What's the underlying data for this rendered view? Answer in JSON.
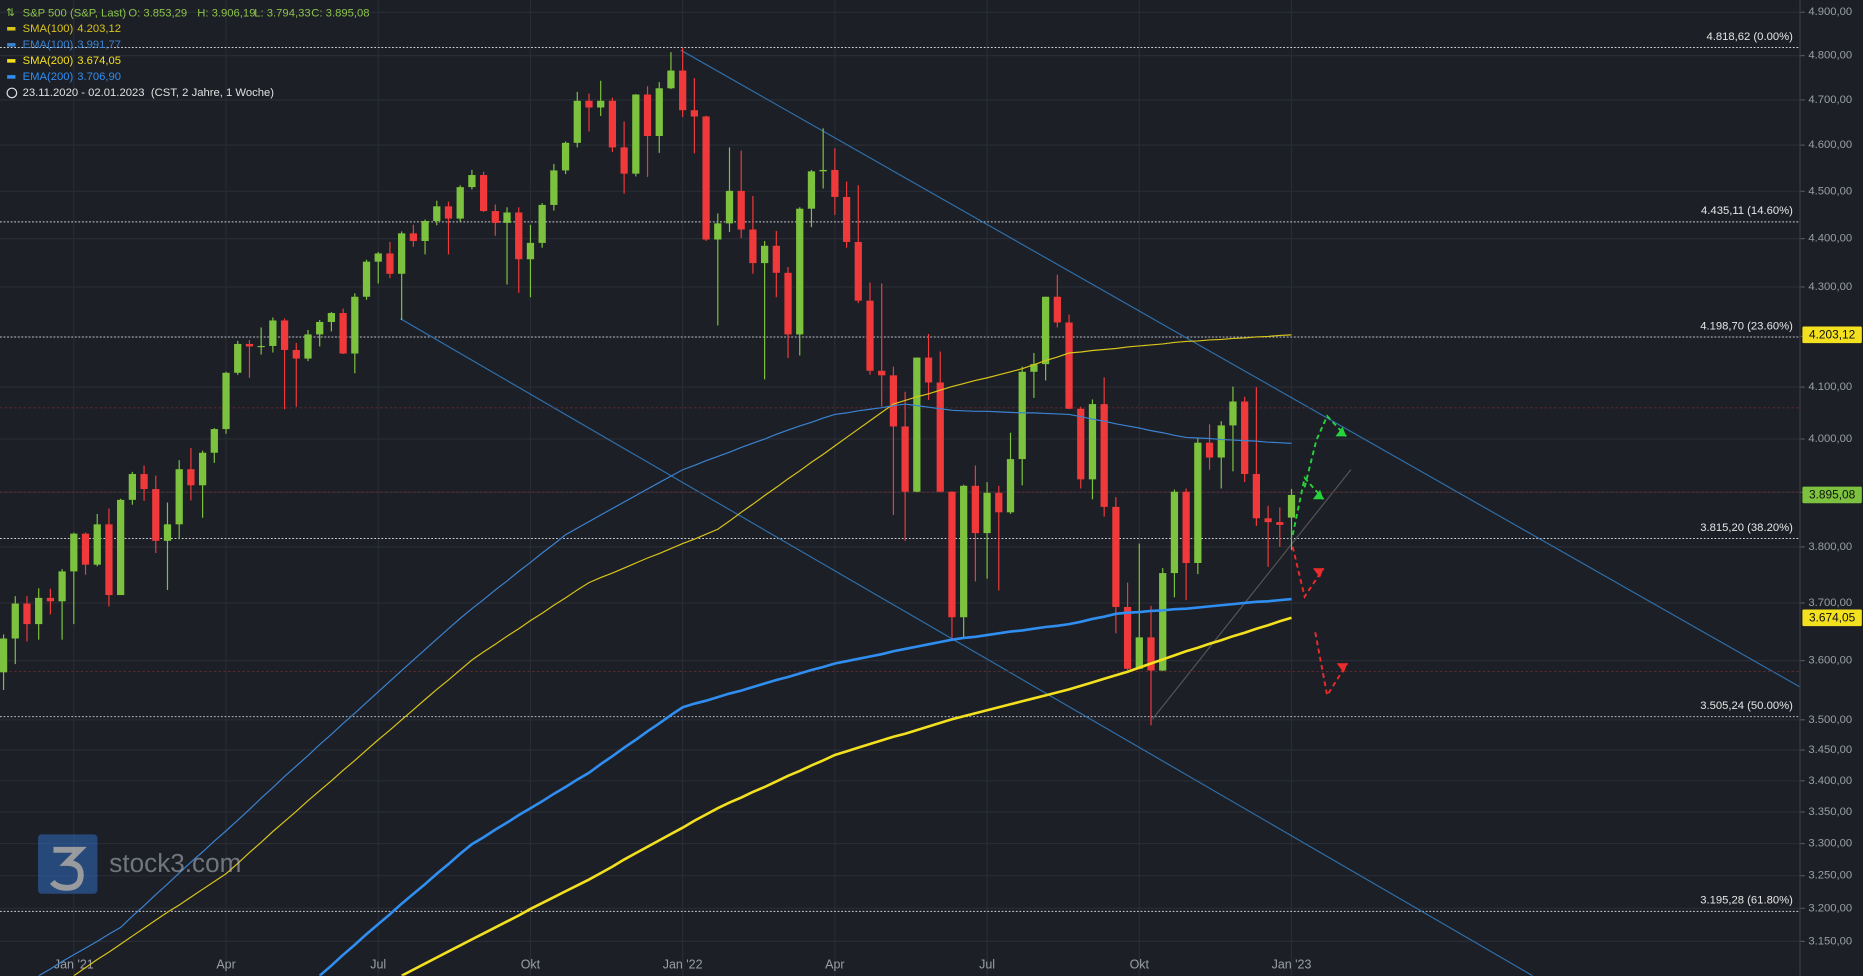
{
  "chart_data": {
    "type": "candlestick",
    "instrument": "S&P 500 (S&P, Last)",
    "ohlc_labels": [
      "O: 3.853,29",
      "H: 3.906,19",
      "L: 3.794,33",
      "C: 3.895,08"
    ],
    "date_range": "23.11.2020 - 02.01.2023",
    "period_info": "(CST, 2 Jahre, 1 Woche)",
    "watermark": "stock3.com",
    "log_scale": true,
    "grid": true,
    "up_color": "#7cc23e",
    "down_color": "#f0393a",
    "categories": [
      null,
      null,
      null,
      null,
      null,
      null,
      "Jan '21",
      null,
      null,
      null,
      null,
      null,
      null,
      null,
      null,
      null,
      null,
      null,
      null,
      "Apr",
      null,
      null,
      null,
      null,
      null,
      null,
      null,
      null,
      null,
      null,
      null,
      null,
      "Jul",
      null,
      null,
      null,
      null,
      null,
      null,
      null,
      null,
      null,
      null,
      null,
      null,
      "Okt",
      null,
      null,
      null,
      null,
      null,
      null,
      null,
      null,
      null,
      null,
      null,
      null,
      "Jan '22",
      null,
      null,
      null,
      null,
      null,
      null,
      null,
      null,
      null,
      null,
      null,
      null,
      "Apr",
      null,
      null,
      null,
      null,
      null,
      null,
      null,
      null,
      null,
      null,
      null,
      null,
      "Jul",
      null,
      null,
      null,
      null,
      null,
      null,
      null,
      null,
      null,
      null,
      null,
      null,
      "Okt",
      null,
      null,
      null,
      null,
      null,
      null,
      null,
      null,
      null,
      null,
      null,
      null,
      "Jan '23"
    ],
    "open": [
      3580,
      3638,
      3699,
      3663,
      3709,
      3703,
      3756,
      3824,
      3768,
      3841,
      3714,
      3886,
      3934,
      3906,
      3811,
      3841,
      3943,
      3913,
      3974,
      4019,
      4128,
      4185,
      4180,
      4181,
      4232,
      4173,
      4156,
      4204,
      4229,
      4247,
      4166,
      4280,
      4352,
      4369,
      4327,
      4411,
      4395,
      4437,
      4468,
      4442,
      4509,
      4535,
      4458,
      4433,
      4455,
      4357,
      4391,
      4471,
      4545,
      4605,
      4698,
      4683,
      4698,
      4595,
      4538,
      4712,
      4620,
      4726,
      4766,
      4677,
      4663,
      4398,
      4432,
      4501,
      4419,
      4349,
      4385,
      4329,
      4204,
      4463,
      4543,
      4546,
      4488,
      4393,
      4272,
      4132,
      4123,
      4024,
      3901,
      4158,
      4109,
      3901,
      3675,
      3912,
      3825,
      3899,
      3863,
      3962,
      4130,
      4145,
      4280,
      4228,
      4058,
      3924,
      4067,
      3873,
      3693,
      3586,
      3640,
      3583,
      3753,
      3901,
      3771,
      3993,
      3965,
      4026,
      4072,
      3934,
      3852,
      3845,
      3853.29
    ],
    "high": [
      3645,
      3712,
      3712,
      3726,
      3725,
      3760,
      3826,
      3826,
      3860,
      3870,
      3888,
      3938,
      3950,
      3931,
      3881,
      3960,
      3983,
      3978,
      4021,
      4130,
      4191,
      4193,
      4218,
      4238,
      4236,
      4187,
      4213,
      4233,
      4249,
      4256,
      4287,
      4356,
      4372,
      4393,
      4415,
      4429,
      4440,
      4480,
      4478,
      4513,
      4546,
      4542,
      4472,
      4466,
      4466,
      4429,
      4475,
      4559,
      4608,
      4718,
      4714,
      4743,
      4705,
      4652,
      4713,
      4731,
      4740,
      4808,
      4818,
      4749,
      4665,
      4453,
      4595,
      4588,
      4490,
      4395,
      4416,
      4341,
      4466,
      4546,
      4637,
      4593,
      4521,
      4513,
      4309,
      4307,
      4140,
      4091,
      4158,
      4205,
      4170,
      3902,
      3914,
      3950,
      3919,
      3912,
      4012,
      4140,
      4167,
      4280,
      4325,
      4244,
      4062,
      4076,
      4119,
      3891,
      3736,
      3806,
      3695,
      3762,
      3905,
      3907,
      4001,
      4028,
      4034,
      4101,
      4081,
      4100,
      3875,
      3872,
      3906.19
    ],
    "low": [
      3550,
      3594,
      3633,
      3636,
      3680,
      3636,
      3663,
      3750,
      3765,
      3694,
      3725,
      3877,
      3884,
      3789,
      3723,
      3814,
      3885,
      3853,
      3955,
      4010,
      4124,
      4118,
      4164,
      4168,
      4057,
      4062,
      4151,
      4180,
      4210,
      4165,
      4127,
      4274,
      4307,
      4318,
      4233,
      4383,
      4367,
      4428,
      4367,
      4436,
      4504,
      4456,
      4406,
      4305,
      4288,
      4279,
      4381,
      4459,
      4537,
      4595,
      4630,
      4664,
      4585,
      4495,
      4532,
      4531,
      4583,
      4724,
      4662,
      4582,
      4395,
      4222,
      4414,
      4401,
      4327,
      4115,
      4279,
      4157,
      4162,
      4424,
      4506,
      4450,
      4381,
      4267,
      4124,
      4062,
      3858,
      3811,
      3900,
      4075,
      3900,
      3636,
      3640,
      3738,
      3743,
      3722,
      3860,
      3913,
      4079,
      4113,
      4218,
      4057,
      3907,
      3887,
      3855,
      3647,
      3584,
      3585,
      3491,
      3582,
      3710,
      3705,
      3751,
      3942,
      3907,
      3939,
      3919,
      3838,
      3764,
      3800,
      3794.33
    ],
    "close": [
      3638,
      3699,
      3663,
      3709,
      3703,
      3756,
      3824,
      3768,
      3841,
      3714,
      3886,
      3934,
      3906,
      3811,
      3841,
      3943,
      3913,
      3974,
      4019,
      4128,
      4185,
      4180,
      4181,
      4232,
      4173,
      4156,
      4204,
      4229,
      4247,
      4166,
      4280,
      4352,
      4369,
      4327,
      4411,
      4395,
      4437,
      4468,
      4442,
      4509,
      4535,
      4458,
      4433,
      4455,
      4357,
      4391,
      4471,
      4545,
      4605,
      4698,
      4683,
      4698,
      4595,
      4538,
      4712,
      4620,
      4726,
      4766,
      4677,
      4663,
      4398,
      4432,
      4501,
      4419,
      4349,
      4385,
      4329,
      4204,
      4463,
      4543,
      4546,
      4488,
      4393,
      4272,
      4132,
      4123,
      4024,
      3901,
      4158,
      4109,
      3901,
      3675,
      3912,
      3825,
      3899,
      3863,
      3962,
      4130,
      4145,
      4280,
      4228,
      4058,
      3924,
      4067,
      3873,
      3693,
      3586,
      3640,
      3583,
      3753,
      3901,
      3771,
      3993,
      3965,
      4026,
      4072,
      3934,
      3852,
      3845,
      3840,
      3895.08
    ],
    "series": [
      {
        "name": "SMA(100)",
        "value_label": "4.203,12",
        "color": "#d9c41a",
        "line_width": 1,
        "values": [
          null,
          null,
          null,
          null,
          null,
          null,
          3099,
          3111,
          3123,
          3134,
          3146,
          3158,
          3170,
          3182,
          3194,
          3205,
          3217,
          3229,
          3241,
          3253,
          3269,
          3286,
          3302,
          3319,
          3335,
          3351,
          3368,
          3384,
          3400,
          3417,
          3433,
          3450,
          3467,
          3483,
          3500,
          3517,
          3534,
          3551,
          3567,
          3584,
          3601,
          3615,
          3628,
          3642,
          3655,
          3669,
          3682,
          3696,
          3709,
          3723,
          3736,
          3745,
          3753,
          3762,
          3771,
          3780,
          3788,
          3797,
          3806,
          3814,
          3823,
          3832,
          3847,
          3863,
          3878,
          3894,
          3909,
          3925,
          3940,
          3956,
          3971,
          3987,
          4003,
          4019,
          4035,
          4051,
          4067,
          4074,
          4081,
          4087,
          4094,
          4101,
          4107,
          4113,
          4118,
          4124,
          4130,
          4136,
          4144,
          4152,
          4159,
          4167,
          4169,
          4172,
          4174,
          4176,
          4179,
          4181,
          4183,
          4185,
          4188,
          4190,
          4191,
          4193,
          4194,
          4196,
          4197,
          4199,
          4200,
          4202,
          4203.12
        ]
      },
      {
        "name": "EMA(100)",
        "value_label": "3.991,77",
        "color": "#3b82d0",
        "line_width": 1,
        "values": [
          null,
          null,
          null,
          3099,
          3109,
          3120,
          3130,
          3140,
          3150,
          3161,
          3171,
          3188,
          3204,
          3221,
          3237,
          3254,
          3271,
          3287,
          3304,
          3320,
          3337,
          3354,
          3372,
          3389,
          3407,
          3424,
          3441,
          3459,
          3476,
          3494,
          3511,
          3529,
          3547,
          3565,
          3583,
          3601,
          3619,
          3637,
          3655,
          3673,
          3690,
          3706,
          3723,
          3739,
          3756,
          3772,
          3789,
          3805,
          3822,
          3834,
          3846,
          3858,
          3870,
          3882,
          3894,
          3906,
          3918,
          3930,
          3942,
          3950,
          3959,
          3967,
          3975,
          3984,
          3992,
          4000,
          4009,
          4017,
          4025,
          4032,
          4040,
          4047,
          4050,
          4054,
          4057,
          4060,
          4064,
          4067,
          4064,
          4061,
          4058,
          4055,
          4054,
          4053,
          4053,
          4052,
          4051,
          4050,
          4050,
          4049,
          4048,
          4047,
          4043,
          4038,
          4034,
          4029,
          4025,
          4021,
          4016,
          4012,
          4007,
          4003,
          4002,
          4001,
          3999,
          3998,
          3997,
          3996,
          3994,
          3993,
          3991.77
        ]
      },
      {
        "name": "SMA(200)",
        "value_label": "3.674,05",
        "color": "#f3e01e",
        "line_width": 2.2,
        "values": [
          null,
          null,
          null,
          null,
          null,
          null,
          null,
          null,
          null,
          null,
          null,
          null,
          null,
          null,
          null,
          null,
          null,
          null,
          null,
          null,
          null,
          null,
          null,
          null,
          null,
          null,
          null,
          null,
          null,
          null,
          null,
          null,
          null,
          null,
          3099,
          3108,
          3117,
          3126,
          3135,
          3144,
          3153,
          3162,
          3171,
          3180,
          3189,
          3199,
          3208,
          3217,
          3226,
          3235,
          3244,
          3254,
          3264,
          3275,
          3285,
          3295,
          3305,
          3315,
          3325,
          3336,
          3346,
          3356,
          3365,
          3373,
          3382,
          3390,
          3399,
          3408,
          3416,
          3425,
          3433,
          3442,
          3448,
          3454,
          3460,
          3466,
          3472,
          3477,
          3483,
          3489,
          3495,
          3501,
          3506,
          3511,
          3516,
          3521,
          3526,
          3531,
          3536,
          3541,
          3546,
          3551,
          3557,
          3563,
          3569,
          3575,
          3581,
          3588,
          3595,
          3602,
          3609,
          3616,
          3622,
          3629,
          3635,
          3642,
          3648,
          3655,
          3661,
          3668,
          3674.05
        ]
      },
      {
        "name": "EMA(200)",
        "value_label": "3.706,90",
        "color": "#2f8ef0",
        "line_width": 2.2,
        "values": [
          null,
          null,
          null,
          null,
          null,
          null,
          null,
          null,
          null,
          null,
          null,
          null,
          null,
          null,
          null,
          null,
          null,
          null,
          null,
          null,
          null,
          null,
          null,
          null,
          null,
          null,
          null,
          3099,
          3114,
          3130,
          3145,
          3161,
          3176,
          3191,
          3207,
          3222,
          3237,
          3253,
          3268,
          3284,
          3299,
          3310,
          3322,
          3333,
          3345,
          3356,
          3367,
          3379,
          3390,
          3402,
          3413,
          3427,
          3440,
          3454,
          3467,
          3481,
          3494,
          3508,
          3521,
          3527,
          3532,
          3538,
          3544,
          3549,
          3555,
          3561,
          3567,
          3572,
          3578,
          3584,
          3589,
          3595,
          3599,
          3603,
          3607,
          3611,
          3616,
          3620,
          3624,
          3628,
          3632,
          3636,
          3639,
          3641,
          3644,
          3647,
          3650,
          3652,
          3655,
          3658,
          3660,
          3663,
          3667,
          3672,
          3676,
          3681,
          3683,
          3684,
          3686,
          3687,
          3689,
          3690,
          3692,
          3694,
          3696,
          3698,
          3700,
          3702,
          3703,
          3705,
          3706.9
        ]
      }
    ],
    "levels": [
      {
        "value": 4818.62,
        "label": "4.818,62 (0.00%)"
      },
      {
        "value": 4435.11,
        "label": "4.435,11 (14.60%)"
      },
      {
        "value": 4198.7,
        "label": "4.198,70 (23.60%)"
      },
      {
        "value": 3815.2,
        "label": "3.815,20 (38.20%)"
      },
      {
        "value": 3505.24,
        "label": "3.505,24 (50.00%)"
      },
      {
        "value": 3195.28,
        "label": "3.195,28 (61.80%)"
      }
    ],
    "price_tags": [
      {
        "value": 4203.12,
        "label": "4.203,12",
        "color": "#f3e01e"
      },
      {
        "value": 3895.08,
        "label": "3.895,08",
        "color": "#7cc23e"
      },
      {
        "value": 3674.05,
        "label": "3.674,05",
        "color": "#f3e01e"
      }
    ],
    "ylim": [
      3099,
      4928
    ],
    "yticks": [
      {
        "value": 4900,
        "label": "4.900,00"
      },
      {
        "value": 4800,
        "label": "4.800,00"
      },
      {
        "value": 4700,
        "label": "4.700,00"
      },
      {
        "value": 4600,
        "label": "4.600,00"
      },
      {
        "value": 4500,
        "label": "4.500,00"
      },
      {
        "value": 4400,
        "label": "4.400,00"
      },
      {
        "value": 4300,
        "label": "4.300,00"
      },
      {
        "value": 4200,
        "label": "4.200,00"
      },
      {
        "value": 4100,
        "label": "4.100,00"
      },
      {
        "value": 4000,
        "label": "4.000,00"
      },
      {
        "value": 3900,
        "label": "3.900,00"
      },
      {
        "value": 3800,
        "label": "3.800,00"
      },
      {
        "value": 3700,
        "label": "3.700,00"
      },
      {
        "value": 3600,
        "label": "3.600,00"
      },
      {
        "value": 3500,
        "label": "3.500,00"
      },
      {
        "value": 3450,
        "label": "3.450,00"
      },
      {
        "value": 3400,
        "label": "3.400,00"
      },
      {
        "value": 3350,
        "label": "3.350,00"
      },
      {
        "value": 3300,
        "label": "3.300,00"
      },
      {
        "value": 3250,
        "label": "3.250,00"
      },
      {
        "value": 3200,
        "label": "3.200,00"
      },
      {
        "value": 3150,
        "label": "3.150,00"
      }
    ]
  }
}
